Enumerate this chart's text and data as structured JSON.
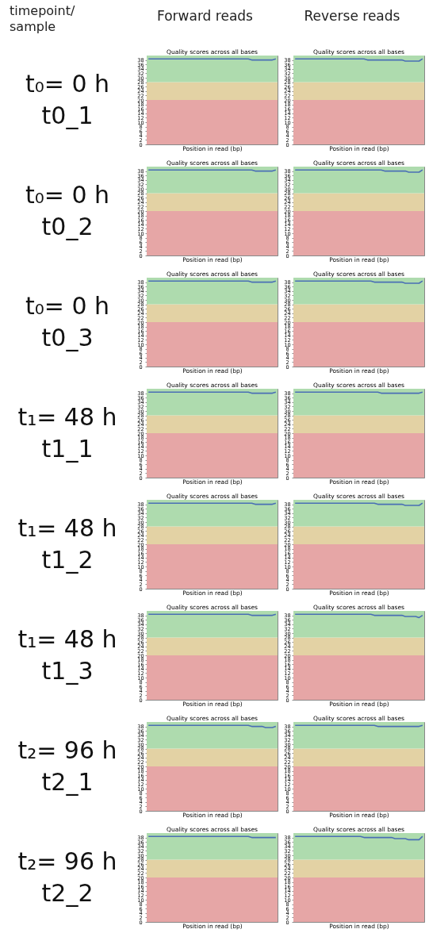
{
  "chart_data": [
    {
      "type": "line",
      "title": "Quality scores across all bases",
      "xlabel": "Position in read (bp)",
      "annotations": [
        "timepoint/ sample",
        "Forward reads",
        "t₀= 0 h",
        "t0_1"
      ],
      "categories": [
        null,
        null,
        null,
        null,
        null,
        null,
        null,
        null,
        null,
        null,
        null,
        null,
        null,
        null,
        null,
        null,
        null,
        null,
        null,
        null,
        null,
        null,
        null,
        null,
        null,
        null,
        null,
        null,
        null,
        null,
        null,
        null,
        null,
        null,
        null,
        null,
        null,
        null
      ],
      "series": [
        {
          "color": "#4a6fb5",
          "values": [
            38.5,
            38.5,
            38.5,
            38.5,
            38.5,
            38.5,
            38.5,
            38.5,
            38.5,
            38.5,
            38.5,
            38.5,
            38.5,
            38.5,
            38.5,
            38.5,
            38.5,
            38.5,
            38.5,
            38.5,
            38.5,
            38.5,
            38.5,
            38.5,
            38.5,
            38.5,
            38.5,
            38.5,
            38.5,
            38.5,
            38,
            38,
            38,
            38,
            38,
            38,
            38,
            38.5
          ]
        }
      ],
      "ylim": [
        0,
        40
      ],
      "yticks": [
        0,
        2,
        4,
        6,
        8,
        10,
        12,
        14,
        16,
        18,
        20,
        22,
        24,
        26,
        28,
        30,
        32,
        34,
        36,
        38
      ],
      "bands": [
        {
          "axis": "y",
          "from": 0,
          "to": 20,
          "color": "#e6a6a6"
        },
        {
          "axis": "y",
          "from": 20,
          "to": 28,
          "color": "#e3d2a4"
        },
        {
          "axis": "y",
          "from": 28,
          "to": 40,
          "color": "#aedbae"
        }
      ]
    },
    {
      "type": "line",
      "title": "Quality scores across all bases",
      "xlabel": "Position in read (bp)",
      "annotations": [
        "Reverse reads"
      ],
      "categories": [
        null,
        null,
        null,
        null,
        null,
        null,
        null,
        null,
        null,
        null,
        null,
        null,
        null,
        null,
        null,
        null,
        null,
        null,
        null,
        null,
        null,
        null,
        null,
        null,
        null,
        null,
        null,
        null,
        null,
        null,
        null,
        null,
        null,
        null,
        null,
        null,
        null,
        null
      ],
      "series": [
        {
          "color": "#4a6fb5",
          "values": [
            38.5,
            38.5,
            38.5,
            38.5,
            38.5,
            38.5,
            38.5,
            38.5,
            38.5,
            38.5,
            38.5,
            38.5,
            38.5,
            38.5,
            38.5,
            38.5,
            38.5,
            38.5,
            38.5,
            38.5,
            38.5,
            38,
            38,
            38,
            38,
            38,
            38,
            38,
            38,
            38,
            38,
            38,
            37.5,
            37.5,
            37.5,
            37.5,
            37.5,
            38.5
          ]
        }
      ],
      "ylim": [
        0,
        40
      ],
      "yticks": [
        0,
        2,
        4,
        6,
        8,
        10,
        12,
        14,
        16,
        18,
        20,
        22,
        24,
        26,
        28,
        30,
        32,
        34,
        36,
        38
      ],
      "bands": [
        {
          "axis": "y",
          "from": 0,
          "to": 20,
          "color": "#e6a6a6"
        },
        {
          "axis": "y",
          "from": 20,
          "to": 28,
          "color": "#e3d2a4"
        },
        {
          "axis": "y",
          "from": 28,
          "to": 40,
          "color": "#aedbae"
        }
      ]
    },
    {
      "type": "line",
      "title": "Quality scores across all bases",
      "xlabel": "Position in read (bp)",
      "annotations": [
        "t₀= 0 h",
        "t0_2"
      ],
      "categories": [
        null,
        null,
        null,
        null,
        null,
        null,
        null,
        null,
        null,
        null,
        null,
        null,
        null,
        null,
        null,
        null,
        null,
        null,
        null,
        null,
        null,
        null,
        null,
        null,
        null,
        null,
        null,
        null,
        null,
        null,
        null,
        null,
        null,
        null,
        null,
        null,
        null,
        null
      ],
      "series": [
        {
          "color": "#4a6fb5",
          "values": [
            38.5,
            38.5,
            38.5,
            38.5,
            38.5,
            38.5,
            38.5,
            38.5,
            38.5,
            38.5,
            38.5,
            38.5,
            38.5,
            38.5,
            38.5,
            38.5,
            38.5,
            38.5,
            38.5,
            38.5,
            38.5,
            38.5,
            38.5,
            38.5,
            38.5,
            38.5,
            38.5,
            38.5,
            38.5,
            38.5,
            38.5,
            38,
            38,
            38,
            38,
            38,
            38,
            38.5
          ]
        }
      ],
      "ylim": [
        0,
        40
      ],
      "yticks": [
        0,
        2,
        4,
        6,
        8,
        10,
        12,
        14,
        16,
        18,
        20,
        22,
        24,
        26,
        28,
        30,
        32,
        34,
        36,
        38
      ],
      "bands": [
        {
          "axis": "y",
          "from": 0,
          "to": 20,
          "color": "#e6a6a6"
        },
        {
          "axis": "y",
          "from": 20,
          "to": 28,
          "color": "#e3d2a4"
        },
        {
          "axis": "y",
          "from": 28,
          "to": 40,
          "color": "#aedbae"
        }
      ]
    },
    {
      "type": "line",
      "title": "Quality scores across all bases",
      "xlabel": "Position in read (bp)",
      "categories": [
        null,
        null,
        null,
        null,
        null,
        null,
        null,
        null,
        null,
        null,
        null,
        null,
        null,
        null,
        null,
        null,
        null,
        null,
        null,
        null,
        null,
        null,
        null,
        null,
        null,
        null,
        null,
        null,
        null,
        null,
        null,
        null,
        null,
        null,
        null,
        null,
        null,
        null
      ],
      "series": [
        {
          "color": "#4a6fb5",
          "values": [
            38.5,
            38.5,
            38.5,
            38.5,
            38.5,
            38.5,
            38.5,
            38.5,
            38.5,
            38.5,
            38.5,
            38.5,
            38.5,
            38.5,
            38.5,
            38.5,
            38.5,
            38.5,
            38.5,
            38.5,
            38.5,
            38.5,
            38.5,
            38.5,
            38.5,
            38.5,
            38,
            38,
            38,
            38,
            38,
            38,
            38,
            37.5,
            37.5,
            37.5,
            37.5,
            38.5
          ]
        }
      ],
      "ylim": [
        0,
        40
      ],
      "yticks": [
        0,
        2,
        4,
        6,
        8,
        10,
        12,
        14,
        16,
        18,
        20,
        22,
        24,
        26,
        28,
        30,
        32,
        34,
        36,
        38
      ],
      "bands": [
        {
          "axis": "y",
          "from": 0,
          "to": 20,
          "color": "#e6a6a6"
        },
        {
          "axis": "y",
          "from": 20,
          "to": 28,
          "color": "#e3d2a4"
        },
        {
          "axis": "y",
          "from": 28,
          "to": 40,
          "color": "#aedbae"
        }
      ]
    },
    {
      "type": "line",
      "title": "Quality scores across all bases",
      "xlabel": "Position in read (bp)",
      "annotations": [
        "t₀= 0 h",
        "t0_3"
      ],
      "categories": [
        null,
        null,
        null,
        null,
        null,
        null,
        null,
        null,
        null,
        null,
        null,
        null,
        null,
        null,
        null,
        null,
        null,
        null,
        null,
        null,
        null,
        null,
        null,
        null,
        null,
        null,
        null,
        null,
        null,
        null,
        null,
        null,
        null,
        null,
        null,
        null,
        null,
        null
      ],
      "series": [
        {
          "color": "#4a6fb5",
          "values": [
            38.5,
            38.5,
            38.5,
            38.5,
            38.5,
            38.5,
            38.5,
            38.5,
            38.5,
            38.5,
            38.5,
            38.5,
            38.5,
            38.5,
            38.5,
            38.5,
            38.5,
            38.5,
            38.5,
            38.5,
            38.5,
            38.5,
            38.5,
            38.5,
            38.5,
            38.5,
            38.5,
            38.5,
            38.5,
            38.5,
            38,
            38,
            38,
            38,
            38,
            38,
            38,
            38.5
          ]
        }
      ],
      "ylim": [
        0,
        40
      ],
      "yticks": [
        0,
        2,
        4,
        6,
        8,
        10,
        12,
        14,
        16,
        18,
        20,
        22,
        24,
        26,
        28,
        30,
        32,
        34,
        36,
        38
      ],
      "bands": [
        {
          "axis": "y",
          "from": 0,
          "to": 20,
          "color": "#e6a6a6"
        },
        {
          "axis": "y",
          "from": 20,
          "to": 28,
          "color": "#e3d2a4"
        },
        {
          "axis": "y",
          "from": 28,
          "to": 40,
          "color": "#aedbae"
        }
      ]
    },
    {
      "type": "line",
      "title": "Quality scores across all bases",
      "xlabel": "Position in read (bp)",
      "categories": [
        null,
        null,
        null,
        null,
        null,
        null,
        null,
        null,
        null,
        null,
        null,
        null,
        null,
        null,
        null,
        null,
        null,
        null,
        null,
        null,
        null,
        null,
        null,
        null,
        null,
        null,
        null,
        null,
        null,
        null,
        null,
        null,
        null,
        null,
        null,
        null,
        null,
        null
      ],
      "series": [
        {
          "color": "#4a6fb5",
          "values": [
            38.5,
            38.5,
            38.5,
            38.5,
            38.5,
            38.5,
            38.5,
            38.5,
            38.5,
            38.5,
            38.5,
            38.5,
            38.5,
            38.5,
            38.5,
            38.5,
            38.5,
            38.5,
            38.5,
            38.5,
            38.5,
            38.5,
            38.5,
            38,
            38,
            38,
            38,
            38,
            38,
            38,
            38,
            38,
            37.5,
            37.5,
            37.5,
            37.5,
            37.5,
            38.5
          ]
        }
      ],
      "ylim": [
        0,
        40
      ],
      "yticks": [
        0,
        2,
        4,
        6,
        8,
        10,
        12,
        14,
        16,
        18,
        20,
        22,
        24,
        26,
        28,
        30,
        32,
        34,
        36,
        38
      ],
      "bands": [
        {
          "axis": "y",
          "from": 0,
          "to": 20,
          "color": "#e6a6a6"
        },
        {
          "axis": "y",
          "from": 20,
          "to": 28,
          "color": "#e3d2a4"
        },
        {
          "axis": "y",
          "from": 28,
          "to": 40,
          "color": "#aedbae"
        }
      ]
    },
    {
      "type": "line",
      "title": "Quality scores across all bases",
      "xlabel": "Position in read (bp)",
      "annotations": [
        "t₁= 48 h",
        "t1_1"
      ],
      "categories": [
        null,
        null,
        null,
        null,
        null,
        null,
        null,
        null,
        null,
        null,
        null,
        null,
        null,
        null,
        null,
        null,
        null,
        null,
        null,
        null,
        null,
        null,
        null,
        null,
        null,
        null,
        null,
        null,
        null,
        null,
        null,
        null,
        null,
        null,
        null,
        null,
        null,
        null
      ],
      "series": [
        {
          "color": "#4a6fb5",
          "values": [
            38.5,
            38.5,
            38.5,
            38.5,
            38.5,
            38.5,
            38.5,
            38.5,
            38.5,
            38.5,
            38.5,
            38.5,
            38.5,
            38.5,
            38.5,
            38.5,
            38.5,
            38.5,
            38.5,
            38.5,
            38.5,
            38.5,
            38.5,
            38.5,
            38.5,
            38.5,
            38.5,
            38.5,
            38.5,
            38.5,
            38,
            38,
            38,
            38,
            38,
            38,
            38,
            38.5
          ]
        }
      ],
      "ylim": [
        0,
        40
      ],
      "yticks": [
        0,
        2,
        4,
        6,
        8,
        10,
        12,
        14,
        16,
        18,
        20,
        22,
        24,
        26,
        28,
        30,
        32,
        34,
        36,
        38
      ],
      "bands": [
        {
          "axis": "y",
          "from": 0,
          "to": 20,
          "color": "#e6a6a6"
        },
        {
          "axis": "y",
          "from": 20,
          "to": 28,
          "color": "#e3d2a4"
        },
        {
          "axis": "y",
          "from": 28,
          "to": 40,
          "color": "#aedbae"
        }
      ]
    },
    {
      "type": "line",
      "title": "Quality scores across all bases",
      "xlabel": "Position in read (bp)",
      "categories": [
        null,
        null,
        null,
        null,
        null,
        null,
        null,
        null,
        null,
        null,
        null,
        null,
        null,
        null,
        null,
        null,
        null,
        null,
        null,
        null,
        null,
        null,
        null,
        null,
        null,
        null,
        null,
        null,
        null,
        null,
        null,
        null,
        null,
        null,
        null,
        null,
        null,
        null
      ],
      "series": [
        {
          "color": "#4a6fb5",
          "values": [
            38.5,
            38.5,
            38.5,
            38.5,
            38.5,
            38.5,
            38.5,
            38.5,
            38.5,
            38.5,
            38.5,
            38.5,
            38.5,
            38.5,
            38.5,
            38.5,
            38.5,
            38.5,
            38.5,
            38.5,
            38.5,
            38.5,
            38.5,
            38.5,
            38.5,
            38,
            38,
            38,
            38,
            38,
            38,
            38,
            38,
            38,
            38,
            38,
            38,
            38.5
          ]
        }
      ],
      "ylim": [
        0,
        40
      ],
      "yticks": [
        0,
        2,
        4,
        6,
        8,
        10,
        12,
        14,
        16,
        18,
        20,
        22,
        24,
        26,
        28,
        30,
        32,
        34,
        36,
        38
      ],
      "bands": [
        {
          "axis": "y",
          "from": 0,
          "to": 20,
          "color": "#e6a6a6"
        },
        {
          "axis": "y",
          "from": 20,
          "to": 28,
          "color": "#e3d2a4"
        },
        {
          "axis": "y",
          "from": 28,
          "to": 40,
          "color": "#aedbae"
        }
      ]
    },
    {
      "type": "line",
      "title": "Quality scores across all bases",
      "xlabel": "Position in read (bp)",
      "annotations": [
        "t₁= 48 h",
        "t1_2"
      ],
      "categories": [
        null,
        null,
        null,
        null,
        null,
        null,
        null,
        null,
        null,
        null,
        null,
        null,
        null,
        null,
        null,
        null,
        null,
        null,
        null,
        null,
        null,
        null,
        null,
        null,
        null,
        null,
        null,
        null,
        null,
        null,
        null,
        null,
        null,
        null,
        null,
        null,
        null,
        null
      ],
      "series": [
        {
          "color": "#4a6fb5",
          "values": [
            38.5,
            38.5,
            38.5,
            38.5,
            38.5,
            38.5,
            38.5,
            38.5,
            38.5,
            38.5,
            38.5,
            38.5,
            38.5,
            38.5,
            38.5,
            38.5,
            38.5,
            38.5,
            38.5,
            38.5,
            38.5,
            38.5,
            38.5,
            38.5,
            38.5,
            38.5,
            38.5,
            38.5,
            38.5,
            38.5,
            38.5,
            38,
            38,
            38,
            38,
            38,
            38,
            38.5
          ]
        }
      ],
      "ylim": [
        0,
        40
      ],
      "yticks": [
        0,
        2,
        4,
        6,
        8,
        10,
        12,
        14,
        16,
        18,
        20,
        22,
        24,
        26,
        28,
        30,
        32,
        34,
        36,
        38
      ],
      "bands": [
        {
          "axis": "y",
          "from": 0,
          "to": 20,
          "color": "#e6a6a6"
        },
        {
          "axis": "y",
          "from": 20,
          "to": 28,
          "color": "#e3d2a4"
        },
        {
          "axis": "y",
          "from": 28,
          "to": 40,
          "color": "#aedbae"
        }
      ]
    },
    {
      "type": "line",
      "title": "Quality scores across all bases",
      "xlabel": "Position in read (bp)",
      "categories": [
        null,
        null,
        null,
        null,
        null,
        null,
        null,
        null,
        null,
        null,
        null,
        null,
        null,
        null,
        null,
        null,
        null,
        null,
        null,
        null,
        null,
        null,
        null,
        null,
        null,
        null,
        null,
        null,
        null,
        null,
        null,
        null,
        null,
        null,
        null,
        null,
        null,
        null
      ],
      "series": [
        {
          "color": "#4a6fb5",
          "values": [
            38.5,
            38.5,
            38.5,
            38.5,
            38.5,
            38.5,
            38.5,
            38.5,
            38.5,
            38.5,
            38.5,
            38.5,
            38.5,
            38.5,
            38.5,
            38.5,
            38.5,
            38.5,
            38.5,
            38.5,
            38.5,
            38.5,
            38.5,
            38.5,
            38,
            38,
            38,
            38,
            38,
            38,
            38,
            38,
            37.5,
            37.5,
            37.5,
            37.5,
            37.5,
            38.5
          ]
        }
      ],
      "ylim": [
        0,
        40
      ],
      "yticks": [
        0,
        2,
        4,
        6,
        8,
        10,
        12,
        14,
        16,
        18,
        20,
        22,
        24,
        26,
        28,
        30,
        32,
        34,
        36,
        38
      ],
      "bands": [
        {
          "axis": "y",
          "from": 0,
          "to": 20,
          "color": "#e6a6a6"
        },
        {
          "axis": "y",
          "from": 20,
          "to": 28,
          "color": "#e3d2a4"
        },
        {
          "axis": "y",
          "from": 28,
          "to": 40,
          "color": "#aedbae"
        }
      ]
    },
    {
      "type": "line",
      "title": "Quality scores across all bases",
      "xlabel": "Position in read (bp)",
      "annotations": [
        "t₁= 48 h",
        "t1_3"
      ],
      "categories": [
        null,
        null,
        null,
        null,
        null,
        null,
        null,
        null,
        null,
        null,
        null,
        null,
        null,
        null,
        null,
        null,
        null,
        null,
        null,
        null,
        null,
        null,
        null,
        null,
        null,
        null,
        null,
        null,
        null,
        null,
        null,
        null,
        null,
        null,
        null,
        null,
        null,
        null
      ],
      "series": [
        {
          "color": "#4a6fb5",
          "values": [
            38.5,
            38.5,
            38.5,
            38.5,
            38.5,
            38.5,
            38.5,
            38.5,
            38.5,
            38.5,
            38.5,
            38.5,
            38.5,
            38.5,
            38.5,
            38.5,
            38.5,
            38.5,
            38.5,
            38.5,
            38.5,
            38.5,
            38.5,
            38.5,
            38.5,
            38.5,
            38.5,
            38.5,
            38.5,
            38.5,
            38,
            38,
            38,
            38,
            38,
            38,
            38,
            38.5
          ]
        }
      ],
      "ylim": [
        0,
        40
      ],
      "yticks": [
        0,
        2,
        4,
        6,
        8,
        10,
        12,
        14,
        16,
        18,
        20,
        22,
        24,
        26,
        28,
        30,
        32,
        34,
        36,
        38
      ],
      "bands": [
        {
          "axis": "y",
          "from": 0,
          "to": 20,
          "color": "#e6a6a6"
        },
        {
          "axis": "y",
          "from": 20,
          "to": 28,
          "color": "#e3d2a4"
        },
        {
          "axis": "y",
          "from": 28,
          "to": 40,
          "color": "#aedbae"
        }
      ]
    },
    {
      "type": "line",
      "title": "Quality scores across all bases",
      "xlabel": "Position in read (bp)",
      "categories": [
        null,
        null,
        null,
        null,
        null,
        null,
        null,
        null,
        null,
        null,
        null,
        null,
        null,
        null,
        null,
        null,
        null,
        null,
        null,
        null,
        null,
        null,
        null,
        null,
        null,
        null,
        null,
        null,
        null,
        null,
        null,
        null,
        null,
        null,
        null,
        null,
        null,
        null
      ],
      "series": [
        {
          "color": "#4a6fb5",
          "values": [
            38.5,
            38.5,
            38.5,
            38.5,
            38.5,
            38.5,
            38.5,
            38.5,
            38.5,
            38.5,
            38.5,
            38.5,
            38.5,
            38.5,
            38.5,
            38.5,
            38.5,
            38.5,
            38.5,
            38.5,
            38.5,
            38.5,
            38.5,
            38,
            38,
            38,
            38,
            38,
            38,
            38,
            38,
            38,
            37.5,
            37.5,
            37.5,
            37.5,
            37,
            38
          ]
        }
      ],
      "ylim": [
        0,
        40
      ],
      "yticks": [
        0,
        2,
        4,
        6,
        8,
        10,
        12,
        14,
        16,
        18,
        20,
        22,
        24,
        26,
        28,
        30,
        32,
        34,
        36,
        38
      ],
      "bands": [
        {
          "axis": "y",
          "from": 0,
          "to": 20,
          "color": "#e6a6a6"
        },
        {
          "axis": "y",
          "from": 20,
          "to": 28,
          "color": "#e3d2a4"
        },
        {
          "axis": "y",
          "from": 28,
          "to": 40,
          "color": "#aedbae"
        }
      ]
    },
    {
      "type": "line",
      "title": "Quality scores across all bases",
      "xlabel": "Position in read (bp)",
      "annotations": [
        "t₂= 96 h",
        "t2_1"
      ],
      "categories": [
        null,
        null,
        null,
        null,
        null,
        null,
        null,
        null,
        null,
        null,
        null,
        null,
        null,
        null,
        null,
        null,
        null,
        null,
        null,
        null,
        null,
        null,
        null,
        null,
        null,
        null,
        null,
        null,
        null,
        null,
        null,
        null,
        null,
        null,
        null,
        null,
        null,
        null
      ],
      "series": [
        {
          "color": "#4a6fb5",
          "values": [
            38.5,
            38.5,
            38.5,
            38.5,
            38.5,
            38.5,
            38.5,
            38.5,
            38.5,
            38.5,
            38.5,
            38.5,
            38.5,
            38.5,
            38.5,
            38.5,
            38.5,
            38.5,
            38.5,
            38.5,
            38.5,
            38.5,
            38.5,
            38.5,
            38.5,
            38.5,
            38.5,
            38.5,
            38.5,
            38.5,
            38,
            38,
            38,
            38,
            37.5,
            37.5,
            37.5,
            38
          ]
        }
      ],
      "ylim": [
        0,
        40
      ],
      "yticks": [
        0,
        2,
        4,
        6,
        8,
        10,
        12,
        14,
        16,
        18,
        20,
        22,
        24,
        26,
        28,
        30,
        32,
        34,
        36,
        38
      ],
      "bands": [
        {
          "axis": "y",
          "from": 0,
          "to": 20,
          "color": "#e6a6a6"
        },
        {
          "axis": "y",
          "from": 20,
          "to": 28,
          "color": "#e3d2a4"
        },
        {
          "axis": "y",
          "from": 28,
          "to": 40,
          "color": "#aedbae"
        }
      ]
    },
    {
      "type": "line",
      "title": "Quality scores across all bases",
      "xlabel": "Position in read (bp)",
      "categories": [
        null,
        null,
        null,
        null,
        null,
        null,
        null,
        null,
        null,
        null,
        null,
        null,
        null,
        null,
        null,
        null,
        null,
        null,
        null,
        null,
        null,
        null,
        null,
        null,
        null,
        null,
        null,
        null,
        null,
        null,
        null,
        null,
        null,
        null,
        null,
        null,
        null,
        null
      ],
      "series": [
        {
          "color": "#4a6fb5",
          "values": [
            38.5,
            38.5,
            38.5,
            38.5,
            38.5,
            38.5,
            38.5,
            38.5,
            38.5,
            38.5,
            38.5,
            38.5,
            38.5,
            38.5,
            38.5,
            38.5,
            38.5,
            38.5,
            38.5,
            38.5,
            38.5,
            38.5,
            38.5,
            38.5,
            38,
            38,
            38,
            38,
            38,
            38,
            38,
            38,
            38,
            38,
            38,
            38,
            38,
            38.5
          ]
        }
      ],
      "ylim": [
        0,
        40
      ],
      "yticks": [
        0,
        2,
        4,
        6,
        8,
        10,
        12,
        14,
        16,
        18,
        20,
        22,
        24,
        26,
        28,
        30,
        32,
        34,
        36,
        38
      ],
      "bands": [
        {
          "axis": "y",
          "from": 0,
          "to": 20,
          "color": "#e6a6a6"
        },
        {
          "axis": "y",
          "from": 20,
          "to": 28,
          "color": "#e3d2a4"
        },
        {
          "axis": "y",
          "from": 28,
          "to": 40,
          "color": "#aedbae"
        }
      ]
    },
    {
      "type": "line",
      "title": "Quality scores across all bases",
      "xlabel": "Position in read (bp)",
      "annotations": [
        "t₂= 96 h",
        "t2_2"
      ],
      "categories": [
        null,
        null,
        null,
        null,
        null,
        null,
        null,
        null,
        null,
        null,
        null,
        null,
        null,
        null,
        null,
        null,
        null,
        null,
        null,
        null,
        null,
        null,
        null,
        null,
        null,
        null,
        null,
        null,
        null,
        null,
        null,
        null,
        null,
        null,
        null,
        null,
        null,
        null
      ],
      "series": [
        {
          "color": "#4a6fb5",
          "values": [
            38.5,
            38.5,
            38.5,
            38.5,
            38.5,
            38.5,
            38.5,
            38.5,
            38.5,
            38.5,
            38.5,
            38.5,
            38.5,
            38.5,
            38.5,
            38.5,
            38.5,
            38.5,
            38.5,
            38.5,
            38.5,
            38.5,
            38.5,
            38.5,
            38.5,
            38.5,
            38.5,
            38.5,
            38.5,
            38.5,
            38,
            38,
            38,
            38,
            38,
            38,
            38,
            38
          ]
        }
      ],
      "ylim": [
        0,
        40
      ],
      "yticks": [
        0,
        2,
        4,
        6,
        8,
        10,
        12,
        14,
        16,
        18,
        20,
        22,
        24,
        26,
        28,
        30,
        32,
        34,
        36,
        38
      ],
      "bands": [
        {
          "axis": "y",
          "from": 0,
          "to": 20,
          "color": "#e6a6a6"
        },
        {
          "axis": "y",
          "from": 20,
          "to": 28,
          "color": "#e3d2a4"
        },
        {
          "axis": "y",
          "from": 28,
          "to": 40,
          "color": "#aedbae"
        }
      ]
    },
    {
      "type": "line",
      "title": "Quality scores across all bases",
      "xlabel": "Position in read (bp)",
      "categories": [
        null,
        null,
        null,
        null,
        null,
        null,
        null,
        null,
        null,
        null,
        null,
        null,
        null,
        null,
        null,
        null,
        null,
        null,
        null,
        null,
        null,
        null,
        null,
        null,
        null,
        null,
        null,
        null,
        null,
        null,
        null,
        null,
        null,
        null,
        null,
        null,
        null,
        null
      ],
      "series": [
        {
          "color": "#4a6fb5",
          "values": [
            38.5,
            38.5,
            38.5,
            38.5,
            38.5,
            38.5,
            38.5,
            38.5,
            38.5,
            38.5,
            38.5,
            38.5,
            38.5,
            38.5,
            38.5,
            38.5,
            38.5,
            38.5,
            38.5,
            38.5,
            38,
            38,
            38,
            38,
            38,
            38,
            38,
            38,
            38,
            37.5,
            37.5,
            37.5,
            37.5,
            37,
            37,
            37,
            37,
            38.5
          ]
        }
      ],
      "ylim": [
        0,
        40
      ],
      "yticks": [
        0,
        2,
        4,
        6,
        8,
        10,
        12,
        14,
        16,
        18,
        20,
        22,
        24,
        26,
        28,
        30,
        32,
        34,
        36,
        38
      ],
      "bands": [
        {
          "axis": "y",
          "from": 0,
          "to": 20,
          "color": "#e6a6a6"
        },
        {
          "axis": "y",
          "from": 20,
          "to": 28,
          "color": "#e3d2a4"
        },
        {
          "axis": "y",
          "from": 28,
          "to": 40,
          "color": "#aedbae"
        }
      ]
    }
  ]
}
